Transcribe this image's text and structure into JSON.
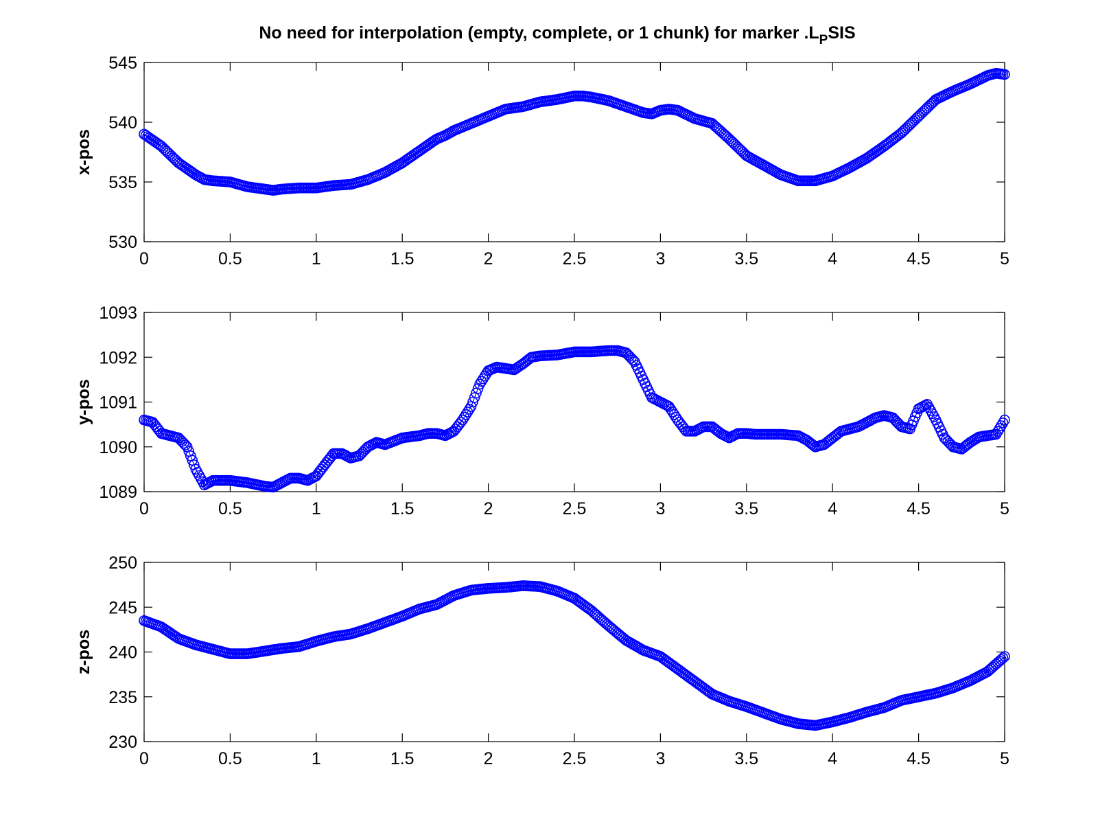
{
  "figure": {
    "title": "No need for interpolation (empty, complete, or 1 chunk) for marker .L",
    "title_subscript": "P",
    "title_suffix": "SIS"
  },
  "colors": {
    "series": "#0000ff",
    "axes": "#000000",
    "background": "#ffffff"
  },
  "chart_data": [
    {
      "type": "scatter",
      "marker": "circle",
      "title": "",
      "xlabel": "",
      "ylabel": "x-pos",
      "xlim": [
        0,
        5
      ],
      "ylim": [
        530,
        545
      ],
      "xticks": [
        "0",
        "0.5",
        "1",
        "1.5",
        "2",
        "2.5",
        "3",
        "3.5",
        "4",
        "4.5",
        "5"
      ],
      "yticks": [
        "530",
        "535",
        "540",
        "545"
      ],
      "grid": false,
      "series": [
        {
          "x": [
            0,
            0.1,
            0.2,
            0.3,
            0.35,
            0.4,
            0.5,
            0.6,
            0.7,
            0.75,
            0.8,
            0.9,
            1.0,
            1.1,
            1.2,
            1.3,
            1.4,
            1.5,
            1.6,
            1.7,
            1.75,
            1.8,
            1.9,
            2.0,
            2.1,
            2.2,
            2.3,
            2.4,
            2.5,
            2.55,
            2.6,
            2.7,
            2.8,
            2.9,
            2.95,
            3.0,
            3.05,
            3.1,
            3.2,
            3.3,
            3.4,
            3.5,
            3.6,
            3.7,
            3.8,
            3.9,
            4.0,
            4.1,
            4.2,
            4.3,
            4.4,
            4.5,
            4.6,
            4.7,
            4.8,
            4.9,
            4.95,
            5.0
          ],
          "y": [
            539.0,
            538.0,
            536.6,
            535.6,
            535.2,
            535.1,
            535.0,
            534.6,
            534.4,
            534.3,
            534.4,
            534.5,
            534.5,
            534.7,
            534.8,
            535.2,
            535.8,
            536.6,
            537.6,
            538.6,
            538.9,
            539.3,
            539.9,
            540.5,
            541.1,
            541.3,
            541.7,
            541.9,
            542.2,
            542.2,
            542.1,
            541.8,
            541.3,
            540.8,
            540.7,
            541.0,
            541.1,
            541.0,
            540.3,
            539.9,
            538.6,
            537.2,
            536.4,
            535.6,
            535.1,
            535.1,
            535.5,
            536.2,
            537.0,
            538.0,
            539.1,
            540.5,
            541.9,
            542.6,
            543.2,
            543.9,
            544.1,
            544.0
          ]
        }
      ]
    },
    {
      "type": "scatter",
      "marker": "circle",
      "title": "",
      "xlabel": "",
      "ylabel": "y-pos",
      "xlim": [
        0,
        5
      ],
      "ylim": [
        1089,
        1093
      ],
      "xticks": [
        "0",
        "0.5",
        "1",
        "1.5",
        "2",
        "2.5",
        "3",
        "3.5",
        "4",
        "4.5",
        "5"
      ],
      "yticks": [
        "1089",
        "1090",
        "1091",
        "1092",
        "1093"
      ],
      "grid": false,
      "series": [
        {
          "x": [
            0,
            0.05,
            0.1,
            0.15,
            0.2,
            0.25,
            0.3,
            0.35,
            0.4,
            0.5,
            0.6,
            0.7,
            0.75,
            0.8,
            0.85,
            0.9,
            0.95,
            1.0,
            1.05,
            1.1,
            1.15,
            1.2,
            1.25,
            1.3,
            1.35,
            1.4,
            1.5,
            1.6,
            1.65,
            1.7,
            1.75,
            1.8,
            1.85,
            1.9,
            1.95,
            2.0,
            2.05,
            2.1,
            2.15,
            2.2,
            2.25,
            2.3,
            2.4,
            2.5,
            2.6,
            2.7,
            2.75,
            2.8,
            2.85,
            2.9,
            2.95,
            3.0,
            3.05,
            3.1,
            3.15,
            3.2,
            3.25,
            3.3,
            3.35,
            3.4,
            3.45,
            3.5,
            3.55,
            3.6,
            3.7,
            3.8,
            3.85,
            3.9,
            3.95,
            4.0,
            4.05,
            4.1,
            4.15,
            4.2,
            4.25,
            4.3,
            4.35,
            4.4,
            4.45,
            4.5,
            4.55,
            4.6,
            4.65,
            4.7,
            4.75,
            4.8,
            4.85,
            4.9,
            4.95,
            5.0
          ],
          "y": [
            1090.6,
            1090.55,
            1090.3,
            1090.25,
            1090.2,
            1090.0,
            1089.5,
            1089.15,
            1089.25,
            1089.25,
            1089.2,
            1089.12,
            1089.1,
            1089.2,
            1089.3,
            1089.3,
            1089.25,
            1089.35,
            1089.6,
            1089.85,
            1089.85,
            1089.75,
            1089.8,
            1090.0,
            1090.1,
            1090.05,
            1090.2,
            1090.25,
            1090.3,
            1090.3,
            1090.25,
            1090.35,
            1090.6,
            1090.9,
            1091.4,
            1091.7,
            1091.78,
            1091.75,
            1091.72,
            1091.85,
            1092.0,
            1092.03,
            1092.05,
            1092.12,
            1092.12,
            1092.15,
            1092.15,
            1092.1,
            1091.9,
            1091.5,
            1091.1,
            1091.0,
            1090.9,
            1090.6,
            1090.35,
            1090.35,
            1090.45,
            1090.45,
            1090.3,
            1090.2,
            1090.3,
            1090.3,
            1090.28,
            1090.28,
            1090.28,
            1090.25,
            1090.15,
            1090.0,
            1090.05,
            1090.2,
            1090.35,
            1090.4,
            1090.45,
            1090.55,
            1090.65,
            1090.7,
            1090.65,
            1090.45,
            1090.4,
            1090.85,
            1090.95,
            1090.6,
            1090.2,
            1090.0,
            1089.95,
            1090.1,
            1090.22,
            1090.25,
            1090.28,
            1090.6
          ]
        }
      ]
    },
    {
      "type": "scatter",
      "marker": "circle",
      "title": "",
      "xlabel": "",
      "ylabel": "z-pos",
      "xlim": [
        0,
        5
      ],
      "ylim": [
        230,
        250
      ],
      "xticks": [
        "0",
        "0.5",
        "1",
        "1.5",
        "2",
        "2.5",
        "3",
        "3.5",
        "4",
        "4.5",
        "5"
      ],
      "yticks": [
        "230",
        "235",
        "240",
        "245",
        "250"
      ],
      "grid": false,
      "series": [
        {
          "x": [
            0,
            0.1,
            0.2,
            0.3,
            0.4,
            0.5,
            0.6,
            0.7,
            0.8,
            0.9,
            1.0,
            1.1,
            1.2,
            1.3,
            1.4,
            1.5,
            1.6,
            1.7,
            1.8,
            1.9,
            2.0,
            2.1,
            2.2,
            2.3,
            2.4,
            2.5,
            2.6,
            2.7,
            2.8,
            2.9,
            3.0,
            3.1,
            3.2,
            3.3,
            3.4,
            3.5,
            3.6,
            3.7,
            3.8,
            3.9,
            4.0,
            4.1,
            4.2,
            4.3,
            4.4,
            4.5,
            4.6,
            4.7,
            4.8,
            4.9,
            5.0
          ],
          "y": [
            243.5,
            242.8,
            241.5,
            240.8,
            240.3,
            239.8,
            239.8,
            240.1,
            240.4,
            240.6,
            241.2,
            241.7,
            242.0,
            242.6,
            243.3,
            244.0,
            244.8,
            245.3,
            246.3,
            246.9,
            247.1,
            247.2,
            247.4,
            247.3,
            246.8,
            246.0,
            244.6,
            242.9,
            241.3,
            240.2,
            239.5,
            238.1,
            236.7,
            235.3,
            234.5,
            233.9,
            233.2,
            232.5,
            232.0,
            231.8,
            232.2,
            232.7,
            233.3,
            233.8,
            234.6,
            235.0,
            235.4,
            236.0,
            236.8,
            237.8,
            239.5
          ]
        }
      ]
    }
  ]
}
